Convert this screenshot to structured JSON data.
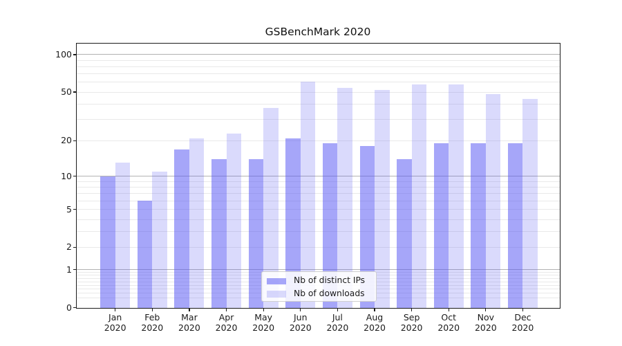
{
  "title": "GSBenchMark 2020",
  "chart_data": {
    "type": "bar",
    "title": "GSBenchMark 2020",
    "categories": [
      "Jan 2020",
      "Feb 2020",
      "Mar 2020",
      "Apr 2020",
      "May 2020",
      "Jun 2020",
      "Jul 2020",
      "Aug 2020",
      "Sep 2020",
      "Oct 2020",
      "Nov 2020",
      "Dec 2020"
    ],
    "series": [
      {
        "name": "Nb of distinct IPs",
        "color": "#5555f3",
        "alpha": 0.52,
        "solid_color": "#a8a8f9",
        "values": [
          10,
          6,
          17,
          14,
          14,
          21,
          19,
          18,
          14,
          19,
          19,
          19
        ]
      },
      {
        "name": "Nb of downloads",
        "color": "#5555f3",
        "alpha": 0.22,
        "solid_color": "#dadafc",
        "values": [
          13,
          11,
          21,
          23,
          37,
          61,
          54,
          52,
          58,
          58,
          48,
          44
        ]
      }
    ],
    "xlabel": "",
    "ylabel": "",
    "yscale": "log1p",
    "ylim": [
      0,
      125
    ],
    "yticks": {
      "values": [
        0,
        1,
        2,
        5,
        10,
        20,
        50,
        100
      ],
      "labels": [
        "0",
        "1",
        "2",
        "5",
        "10",
        "20",
        "50",
        "100"
      ]
    },
    "minor_gridlines": [
      0.2,
      0.3,
      0.4,
      0.5,
      0.6,
      0.7,
      0.8,
      0.9,
      2,
      3,
      4,
      5,
      6,
      7,
      8,
      9,
      20,
      30,
      40,
      50,
      60,
      70,
      80,
      90
    ],
    "major_gridlines": [
      1,
      10,
      100
    ],
    "grid": {
      "major_color": "#b2b2b2",
      "minor_color": "#e9e9e9"
    },
    "legend_position": "lower center"
  }
}
